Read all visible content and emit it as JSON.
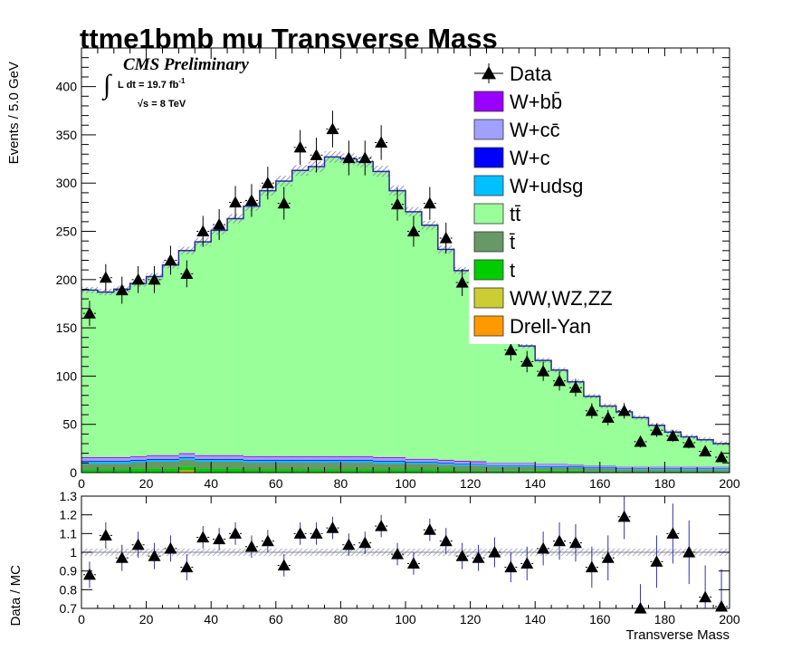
{
  "title": "ttme1bmb mu Transverse Mass",
  "cms_label": "CMS Preliminary",
  "lumi_label": "L dt = 19.7 fb",
  "lumi_sup": "-1",
  "energy_label": "s = 8 TeV",
  "colors": {
    "data": "#000000",
    "wbb": "#9a00ff",
    "wcc": "#a0a0ff",
    "wc": "#0000ff",
    "wudsg": "#00c0ff",
    "ttbar": "#99ff99",
    "tbar": "#669966",
    "t": "#00cc00",
    "diboson": "#cccc33",
    "dy": "#ff9900",
    "uncert": "#8888bb"
  },
  "chart_data": [
    {
      "type": "bar",
      "role": "main",
      "ylabel": "Events / 5.0 GeV",
      "xlim": [
        0,
        200
      ],
      "ylim": [
        0,
        440
      ],
      "x_ticks": [
        0,
        20,
        40,
        60,
        80,
        100,
        120,
        140,
        160,
        180,
        200
      ],
      "y_ticks": [
        0,
        50,
        100,
        150,
        200,
        250,
        300,
        350,
        400
      ],
      "bin_edges": [
        0,
        5,
        10,
        15,
        20,
        25,
        30,
        35,
        40,
        45,
        50,
        55,
        60,
        65,
        70,
        75,
        80,
        85,
        90,
        95,
        100,
        105,
        110,
        115,
        120,
        125,
        130,
        135,
        140,
        145,
        150,
        155,
        160,
        165,
        170,
        175,
        180,
        185,
        190,
        195,
        200
      ],
      "stacked_series": [
        {
          "name": "Drell-Yan",
          "color_key": "dy",
          "values": [
            0,
            0,
            0,
            0,
            0,
            0,
            2,
            0,
            0,
            0,
            0,
            0,
            0,
            0,
            0,
            0,
            0,
            0,
            0,
            0,
            0,
            0,
            0,
            0,
            0,
            0,
            0,
            0,
            0,
            0,
            0,
            0,
            0,
            0,
            0,
            0,
            0,
            0,
            0,
            0
          ]
        },
        {
          "name": "WW,WZ,ZZ",
          "color_key": "diboson",
          "values": [
            0.3,
            0.3,
            0.3,
            0.3,
            0.3,
            0.3,
            0.3,
            0.3,
            0.3,
            0.3,
            0.3,
            0.3,
            0.3,
            0.3,
            0.3,
            0.3,
            0.3,
            0.3,
            0.3,
            0.3,
            0.3,
            0.3,
            0.3,
            0.3,
            0.3,
            0.2,
            0.2,
            0.2,
            0.2,
            0.2,
            0.2,
            0.2,
            0.2,
            0.2,
            0.2,
            0.2,
            0.2,
            0.2,
            0.2,
            0.2
          ]
        },
        {
          "name": "t",
          "color_key": "t",
          "values": [
            3,
            3,
            3,
            4,
            4,
            4,
            4,
            4,
            4,
            4,
            3,
            3,
            3,
            3,
            3,
            3,
            3,
            3,
            3,
            3,
            3,
            3,
            3,
            2,
            2,
            2,
            2,
            2,
            2,
            2,
            2,
            1,
            1,
            1,
            1,
            1,
            1,
            1,
            1,
            1
          ]
        },
        {
          "name": "t̄",
          "color_key": "tbar",
          "values": [
            6,
            6,
            6,
            6,
            7,
            7,
            7,
            7,
            7,
            7,
            7,
            7,
            7,
            7,
            7,
            7,
            7,
            7,
            6,
            6,
            6,
            6,
            5,
            5,
            5,
            4,
            4,
            4,
            3,
            3,
            3,
            3,
            3,
            2,
            2,
            2,
            2,
            2,
            2,
            2
          ]
        },
        {
          "name": "W+udsg",
          "color_key": "wudsg",
          "values": [
            2,
            2,
            2,
            2,
            2,
            2,
            2,
            2,
            2,
            2,
            2,
            2,
            2,
            2,
            2,
            2,
            2,
            2,
            2,
            2,
            1.5,
            1.5,
            1.5,
            1.5,
            1,
            1,
            1,
            1,
            1,
            1,
            1,
            1,
            1,
            1,
            1,
            1,
            1,
            1,
            1,
            1
          ]
        },
        {
          "name": "W+c",
          "color_key": "wc",
          "values": [
            0.8,
            0.8,
            0.8,
            0.8,
            0.8,
            0.8,
            0.8,
            0.8,
            0.8,
            0.8,
            0.8,
            0.8,
            0.8,
            0.8,
            0.8,
            0.8,
            0.8,
            0.8,
            0.8,
            0.8,
            0.5,
            0.5,
            0.5,
            0.5,
            0.5,
            0.5,
            0.5,
            0.5,
            0.5,
            0.5,
            0.3,
            0.3,
            0.3,
            0.3,
            0.3,
            0.3,
            0.3,
            0.3,
            0.3,
            0.3
          ]
        },
        {
          "name": "W+cc̄",
          "color_key": "wcc",
          "values": [
            3,
            3,
            3,
            3,
            3,
            3,
            3,
            3,
            3,
            3,
            3,
            3,
            3,
            3,
            3,
            3,
            3,
            3,
            3,
            3,
            2,
            2,
            2,
            2,
            2,
            2,
            2,
            2,
            2,
            2,
            1,
            1,
            1,
            1,
            1,
            1,
            1,
            1,
            1,
            1
          ]
        },
        {
          "name": "W+bb̄",
          "color_key": "wbb",
          "values": [
            1,
            1,
            1,
            1,
            1,
            1,
            1,
            1,
            1,
            1,
            1,
            1,
            1,
            1,
            1,
            1,
            1,
            1,
            1,
            1,
            1,
            1,
            1,
            1,
            1,
            0.5,
            0.5,
            0.5,
            0.5,
            0.5,
            0.5,
            0.5,
            0.5,
            0.5,
            0.5,
            0.5,
            0.5,
            0.5,
            0.5,
            0.5
          ]
        },
        {
          "name": "tt̄",
          "color_key": "ttbar",
          "values": [
            173,
            171,
            174,
            179,
            185,
            197,
            210,
            221,
            233,
            245,
            259,
            275,
            285,
            296,
            300,
            310,
            308,
            305,
            296,
            276,
            256,
            242,
            218,
            197,
            176,
            156,
            135,
            121,
            107,
            97,
            86,
            72,
            62,
            57,
            51,
            43,
            36,
            31,
            28,
            24
          ]
        }
      ],
      "data": {
        "name": "Data",
        "x": [
          2.5,
          7.5,
          12.5,
          17.5,
          22.5,
          27.5,
          32.5,
          37.5,
          42.5,
          47.5,
          52.5,
          57.5,
          62.5,
          67.5,
          72.5,
          77.5,
          82.5,
          87.5,
          92.5,
          97.5,
          102.5,
          107.5,
          112.5,
          117.5,
          122.5,
          127.5,
          132.5,
          137.5,
          142.5,
          147.5,
          152.5,
          157.5,
          162.5,
          167.5,
          172.5,
          177.5,
          182.5,
          187.5,
          192.5,
          197.5
        ],
        "y": [
          165,
          202,
          189,
          200,
          200,
          220,
          206,
          250,
          257,
          280,
          282,
          300,
          279,
          337,
          329,
          356,
          326,
          326,
          342,
          278,
          250,
          279,
          243,
          197,
          187,
          158,
          127,
          115,
          105,
          95,
          88,
          64,
          57,
          64,
          32,
          44,
          38,
          31,
          22,
          16
        ],
        "err": [
          13,
          14,
          14,
          14,
          14,
          15,
          14,
          16,
          16,
          17,
          17,
          17,
          17,
          18,
          18,
          19,
          18,
          18,
          18,
          17,
          16,
          17,
          16,
          14,
          14,
          13,
          11,
          11,
          10,
          10,
          9,
          8,
          8,
          8,
          6,
          7,
          6,
          6,
          5,
          4
        ]
      },
      "legend": {
        "placement": "top-right",
        "entries": [
          "Data",
          "W+bb̄",
          "W+cc̄",
          "W+c",
          "W+udsg",
          "tt̄",
          "t̄",
          "t",
          "WW,WZ,ZZ",
          "Drell-Yan"
        ]
      }
    },
    {
      "type": "scatter",
      "role": "ratio",
      "xlabel": "Transverse Mass",
      "ylabel": "Data / MC",
      "xlim": [
        0,
        200
      ],
      "ylim": [
        0.7,
        1.3
      ],
      "x_ticks": [
        0,
        20,
        40,
        60,
        80,
        100,
        120,
        140,
        160,
        180,
        200
      ],
      "y_ticks": [
        0.7,
        0.8,
        0.9,
        1,
        1.1,
        1.2,
        1.3
      ],
      "x": [
        2.5,
        7.5,
        12.5,
        17.5,
        22.5,
        27.5,
        32.5,
        37.5,
        42.5,
        47.5,
        52.5,
        57.5,
        62.5,
        67.5,
        72.5,
        77.5,
        82.5,
        87.5,
        92.5,
        97.5,
        102.5,
        107.5,
        112.5,
        117.5,
        122.5,
        127.5,
        132.5,
        137.5,
        142.5,
        147.5,
        152.5,
        157.5,
        162.5,
        167.5,
        172.5,
        177.5,
        182.5,
        187.5,
        192.5,
        197.5
      ],
      "y": [
        0.88,
        1.09,
        0.97,
        1.04,
        0.98,
        1.02,
        0.92,
        1.08,
        1.07,
        1.1,
        1.03,
        1.06,
        0.93,
        1.1,
        1.1,
        1.13,
        1.04,
        1.05,
        1.14,
        0.99,
        0.94,
        1.12,
        1.06,
        0.98,
        0.97,
        1.0,
        0.92,
        0.94,
        1.02,
        1.06,
        1.05,
        0.92,
        0.97,
        1.19,
        0.7,
        0.95,
        1.1,
        1.0,
        0.76,
        0.71
      ],
      "err": [
        0.07,
        0.07,
        0.07,
        0.07,
        0.07,
        0.07,
        0.07,
        0.06,
        0.06,
        0.06,
        0.06,
        0.06,
        0.06,
        0.06,
        0.06,
        0.06,
        0.06,
        0.06,
        0.06,
        0.06,
        0.06,
        0.06,
        0.07,
        0.07,
        0.07,
        0.08,
        0.08,
        0.09,
        0.09,
        0.1,
        0.1,
        0.11,
        0.12,
        0.12,
        0.13,
        0.14,
        0.16,
        0.17,
        0.17,
        0.2
      ],
      "band_halfwidth": 0.02
    }
  ]
}
